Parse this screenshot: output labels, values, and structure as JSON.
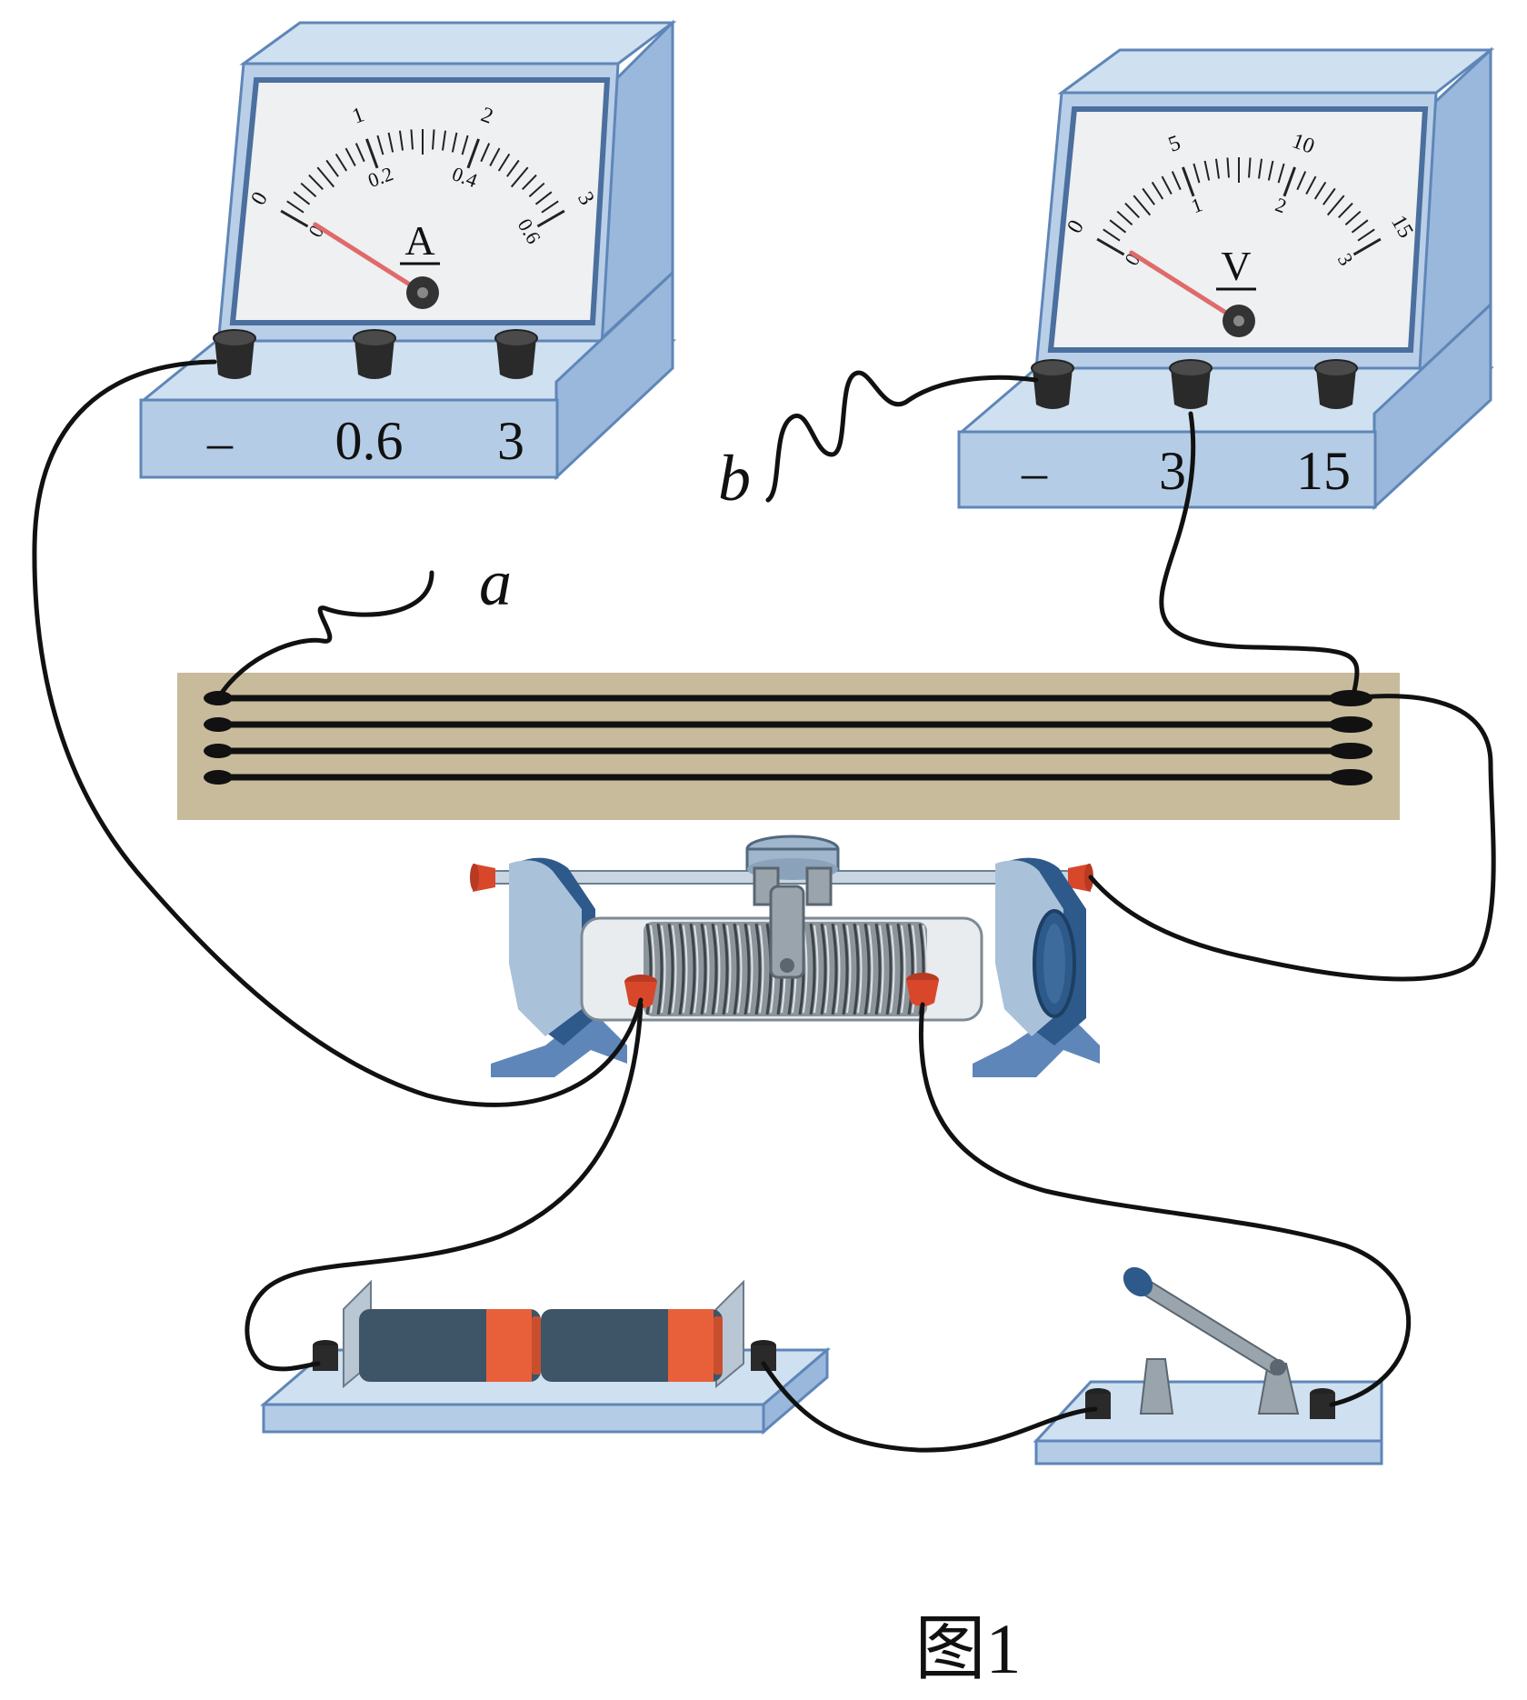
{
  "colors": {
    "meter_front": "#cfe0f0",
    "meter_side": "#9ab8dc",
    "meter_edge": "#5f86b8",
    "dial_face": "#eef0f1",
    "needle": "#e06a6a",
    "wire_board": "#c8bb9c",
    "battery_body": "#3d5566",
    "battery_band": "#e8603a",
    "terminal_red": "#d9472b",
    "rheostat_blue": "#2d5a8a"
  },
  "ammeter": {
    "name": "ammeter",
    "symbol": "A",
    "top_scale": [
      "0",
      "1",
      "2",
      "3"
    ],
    "bottom_scale": [
      "0",
      "0.2",
      "0.4",
      "0.6"
    ],
    "terminals": [
      "–",
      "0.6",
      "3"
    ],
    "needle_fraction": 0.02
  },
  "voltmeter": {
    "name": "voltmeter",
    "symbol": "V",
    "top_scale": [
      "0",
      "5",
      "10",
      "15"
    ],
    "bottom_scale": [
      "0",
      "1",
      "2",
      "3"
    ],
    "terminals": [
      "–",
      "3",
      "15"
    ],
    "needle_fraction": 0.02
  },
  "labels": {
    "wire_a": "a",
    "wire_b": "b"
  },
  "caption": "图1"
}
